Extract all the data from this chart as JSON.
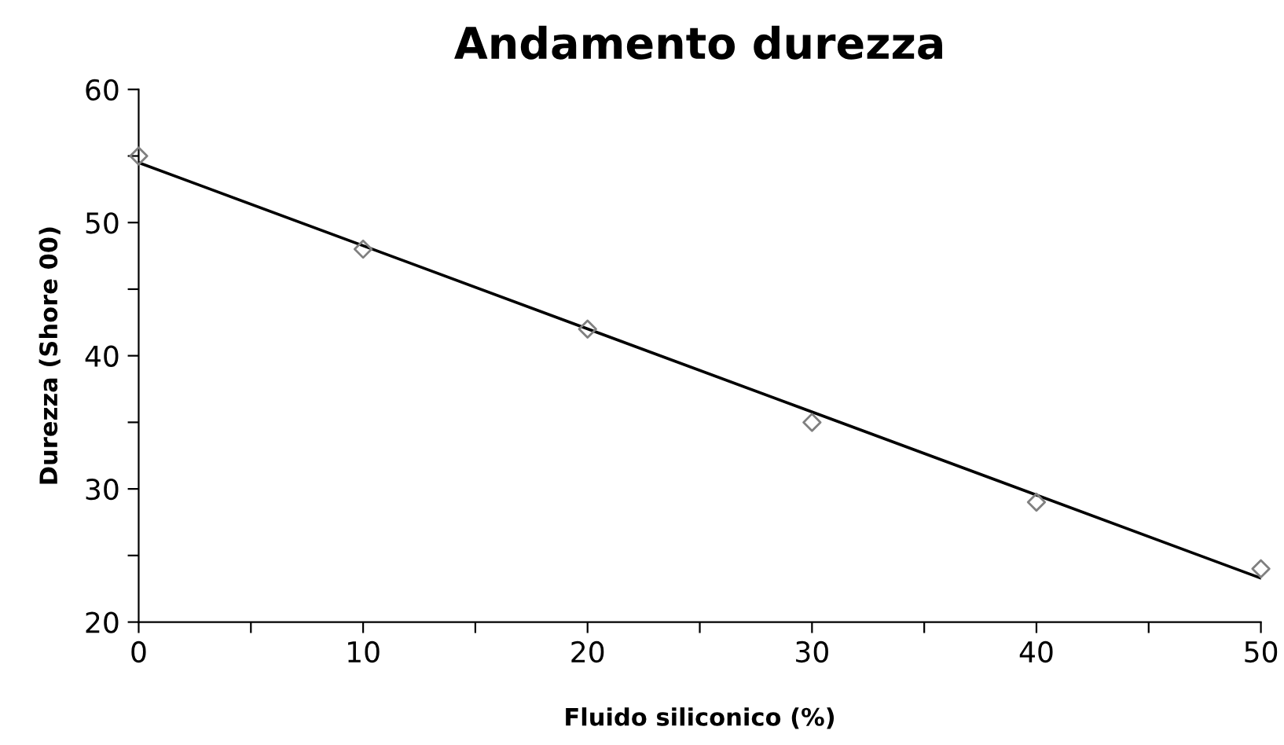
{
  "chart_data": {
    "type": "scatter",
    "title": "Andamento durezza",
    "xlabel": "Fluido siliconico (%)",
    "ylabel": "Durezza (Shore 00)",
    "series": [
      {
        "color": "#808080",
        "marker": "diamond",
        "x": [
          0,
          10,
          20,
          30,
          40,
          50
        ],
        "values": [
          55,
          48,
          42,
          35,
          29,
          24
        ]
      },
      {
        "type": "line",
        "color": "#000000",
        "marker": "none",
        "line_style": "solid",
        "x": [
          0,
          50
        ],
        "values": [
          54.5,
          23.3
        ]
      }
    ],
    "xlim": [
      0,
      50
    ],
    "ylim": [
      20,
      60
    ],
    "xticks": [
      0,
      {
        "value": 5,
        "label": null
      },
      10,
      {
        "value": 15,
        "label": null
      },
      20,
      {
        "value": 25,
        "label": null
      },
      30,
      {
        "value": 35,
        "label": null
      },
      40,
      {
        "value": 45,
        "label": null
      },
      50
    ],
    "yticks": [
      20,
      {
        "value": 25,
        "label": null
      },
      30,
      {
        "value": 35,
        "label": null
      },
      40,
      {
        "value": 45,
        "label": null
      },
      50,
      {
        "value": 55,
        "label": null
      },
      60
    ],
    "grid": false,
    "legend": false
  }
}
